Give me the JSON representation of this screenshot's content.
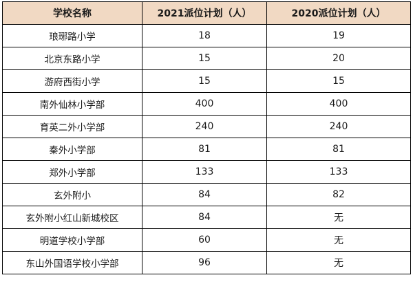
{
  "table": {
    "headers": [
      "学校名称",
      "2021派位计划（人）",
      "2020派位计划（人）"
    ],
    "rows": [
      {
        "name": "琅琊路小学",
        "plan_2021": "18",
        "plan_2020": "19"
      },
      {
        "name": "北京东路小学",
        "plan_2021": "15",
        "plan_2020": "20"
      },
      {
        "name": "游府西街小学",
        "plan_2021": "15",
        "plan_2020": "15"
      },
      {
        "name": "南外仙林小学部",
        "plan_2021": "400",
        "plan_2020": "400"
      },
      {
        "name": "育英二外小学部",
        "plan_2021": "240",
        "plan_2020": "240"
      },
      {
        "name": "秦外小学部",
        "plan_2021": "81",
        "plan_2020": "81"
      },
      {
        "name": "郑外小学部",
        "plan_2021": "133",
        "plan_2020": "133"
      },
      {
        "name": "玄外附小",
        "plan_2021": "84",
        "plan_2020": "82"
      },
      {
        "name": "玄外附小红山新城校区",
        "plan_2021": "84",
        "plan_2020": "无"
      },
      {
        "name": "明道学校小学部",
        "plan_2021": "60",
        "plan_2020": "无"
      },
      {
        "name": "东山外国语学校小学部",
        "plan_2021": "96",
        "plan_2020": "无"
      }
    ]
  },
  "colors": {
    "header_bg": "#f1d9c3",
    "border": "#000000"
  }
}
